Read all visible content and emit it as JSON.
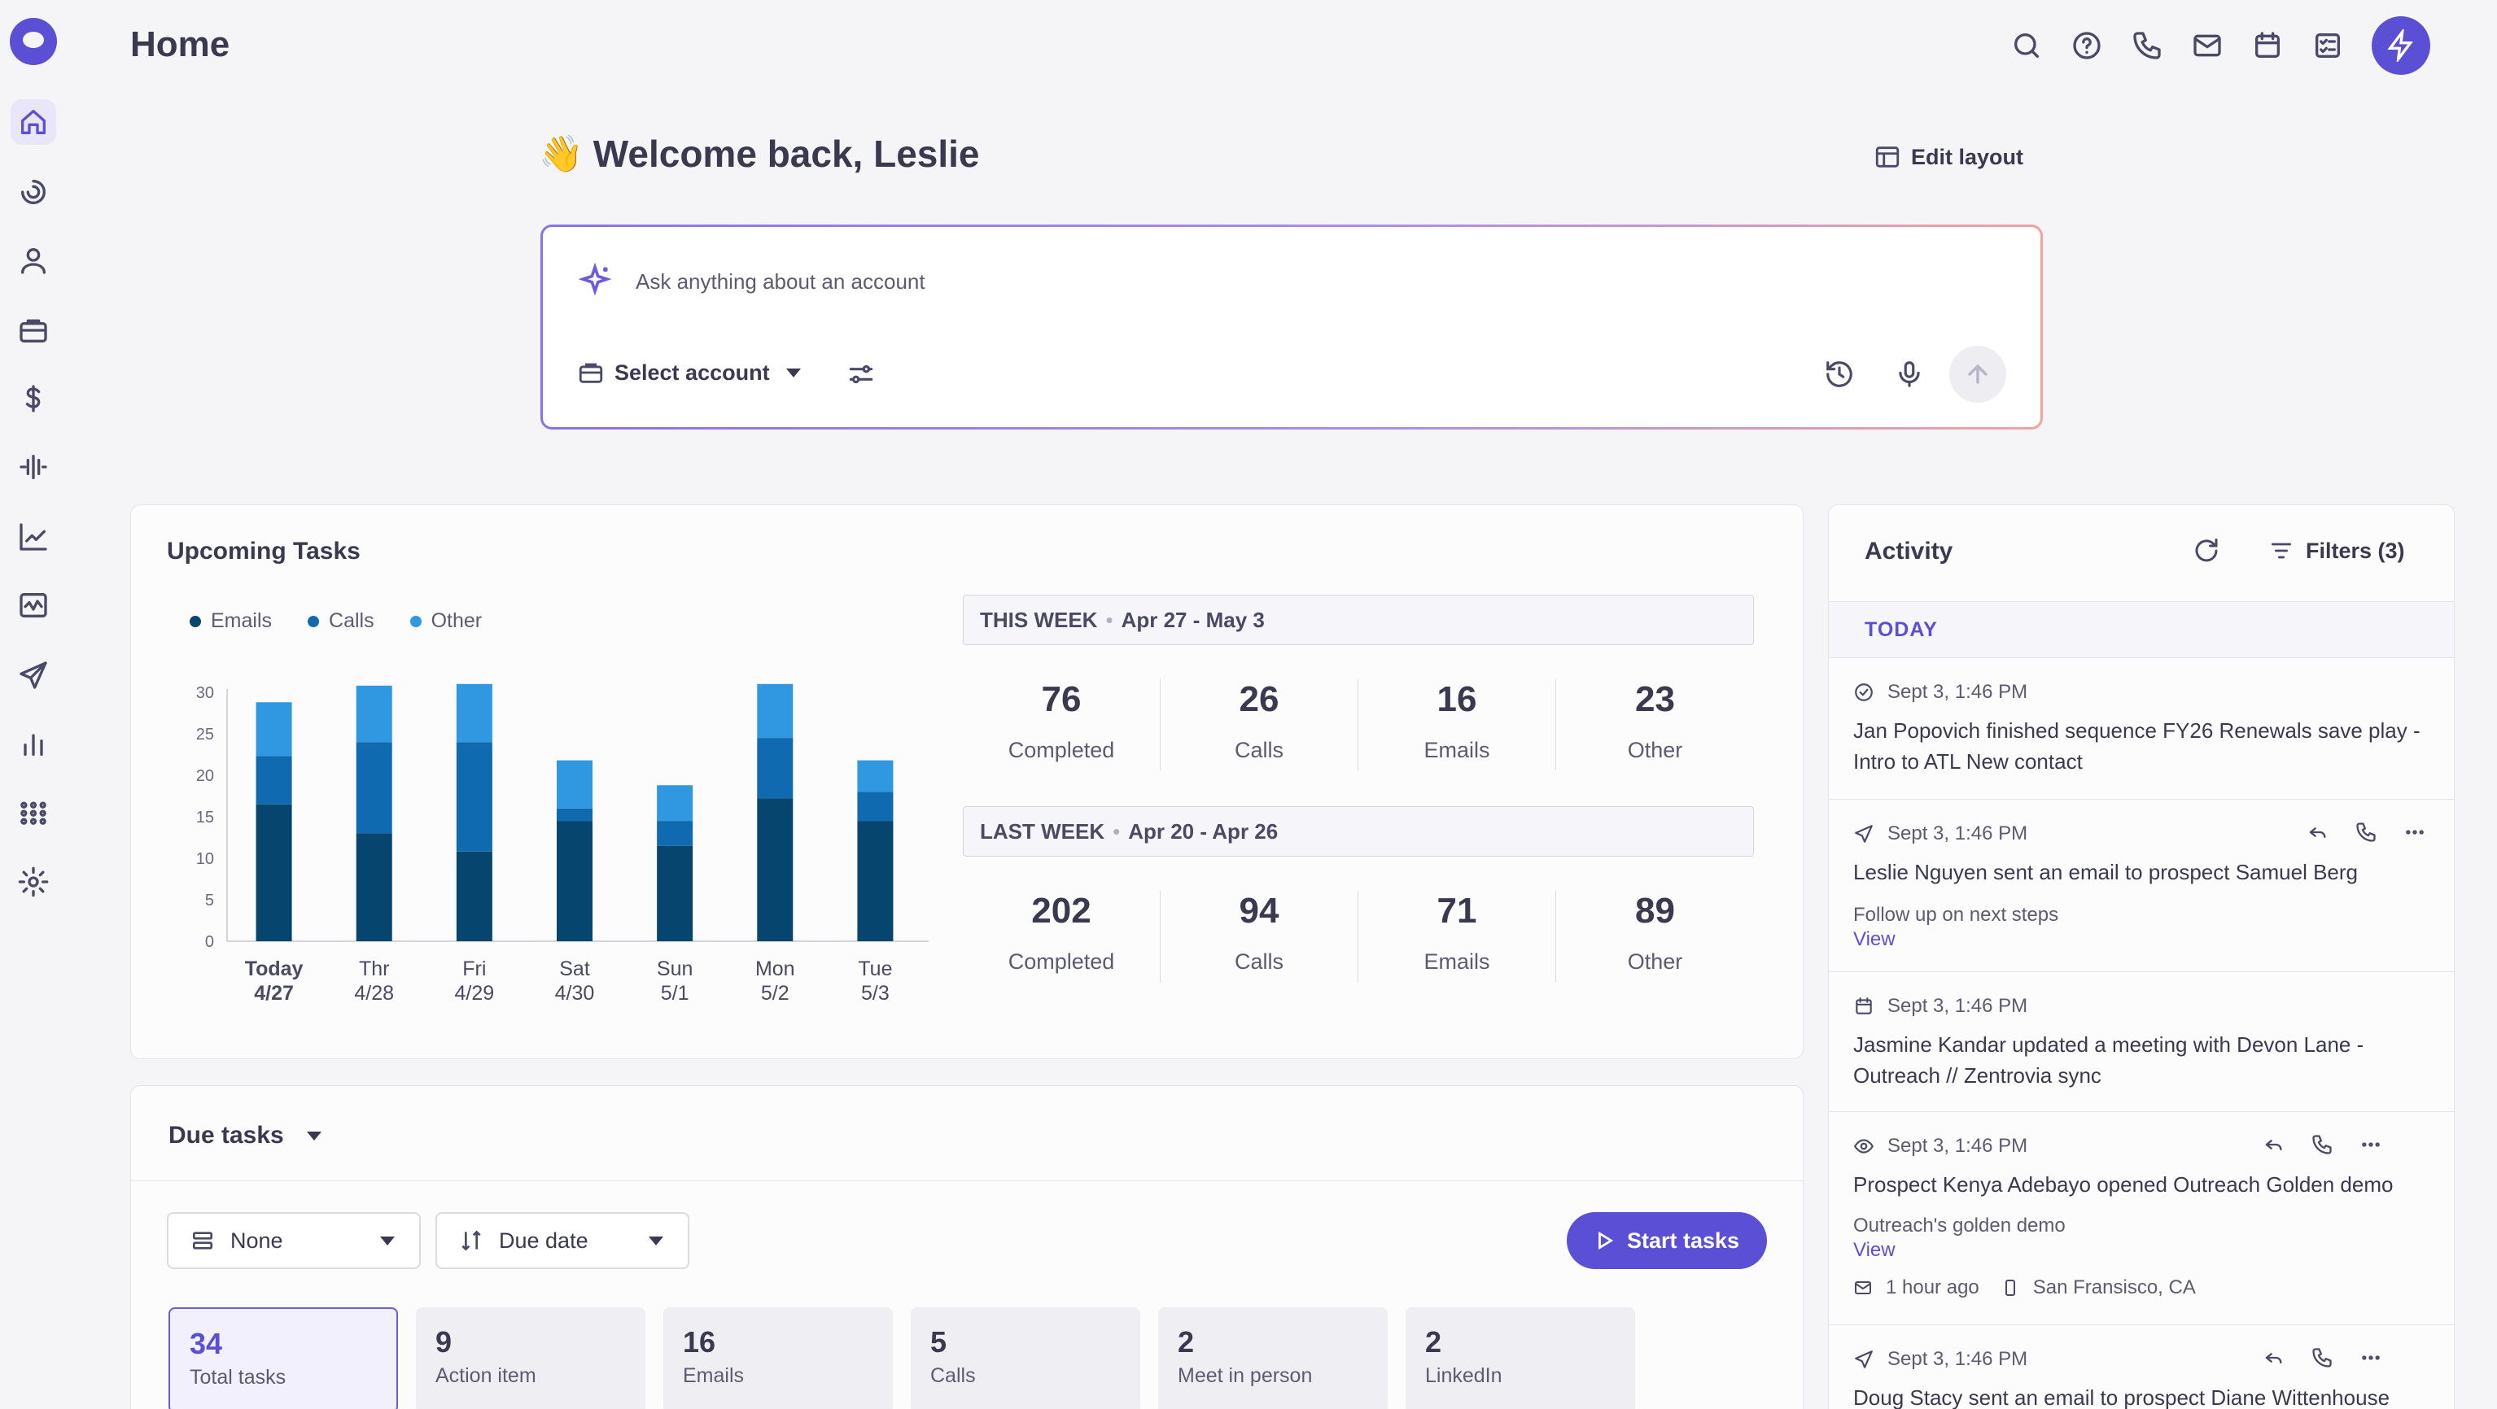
{
  "header": {
    "title": "Home",
    "icons": [
      "search-icon",
      "help-icon",
      "phone-icon",
      "mail-icon",
      "calendar-icon",
      "tasks-icon",
      "bolt-icon"
    ]
  },
  "sidebar": {
    "items": [
      "home-icon",
      "refresh-arc-icon",
      "person-icon",
      "briefcase-icon",
      "dollar-icon",
      "waveform-icon",
      "trend-chart-icon",
      "activity-chart-icon",
      "send-icon",
      "bar-chart-icon",
      "apps-grid-icon",
      "gear-icon"
    ],
    "active": "home-icon"
  },
  "welcome": {
    "emoji": "👋",
    "text": "Welcome back, Leslie",
    "edit_layout": "Edit layout"
  },
  "ask": {
    "placeholder": "Ask anything about an account",
    "select_account": "Select account"
  },
  "upcoming_tasks": {
    "title": "Upcoming Tasks",
    "legend": [
      {
        "name": "Emails",
        "color": "#05456e"
      },
      {
        "name": "Calls",
        "color": "#0f6ab0"
      },
      {
        "name": "Other",
        "color": "#2f98e0"
      }
    ],
    "this_week": {
      "label": "THIS WEEK",
      "range": "Apr 27 - May 3",
      "stats": [
        {
          "value": "76",
          "label": "Completed"
        },
        {
          "value": "26",
          "label": "Calls"
        },
        {
          "value": "16",
          "label": "Emails"
        },
        {
          "value": "23",
          "label": "Other"
        }
      ]
    },
    "last_week": {
      "label": "LAST WEEK",
      "range": "Apr 20 - Apr 26",
      "stats": [
        {
          "value": "202",
          "label": "Completed"
        },
        {
          "value": "94",
          "label": "Calls"
        },
        {
          "value": "71",
          "label": "Emails"
        },
        {
          "value": "89",
          "label": "Other"
        }
      ]
    }
  },
  "chart_data": {
    "type": "bar",
    "stacked": true,
    "categories": [
      [
        "Today",
        "4/27"
      ],
      [
        "Thr",
        "4/28"
      ],
      [
        "Fri",
        "4/29"
      ],
      [
        "Sat",
        "4/30"
      ],
      [
        "Sun",
        "5/1"
      ],
      [
        "Mon",
        "5/2"
      ],
      [
        "Tue",
        "5/3"
      ]
    ],
    "series": [
      {
        "name": "Emails",
        "color": "#05456e",
        "values": [
          16.5,
          13,
          10.8,
          14.5,
          11.5,
          17.2,
          14.5
        ]
      },
      {
        "name": "Calls",
        "color": "#0f6ab0",
        "values": [
          5.8,
          11,
          13.2,
          1.5,
          3,
          7.3,
          3.5
        ]
      },
      {
        "name": "Other",
        "color": "#2f98e0",
        "values": [
          6.5,
          6.8,
          7,
          5.8,
          4.3,
          6.5,
          3.8
        ]
      }
    ],
    "yticks": [
      0,
      5,
      10,
      15,
      20,
      25,
      30
    ],
    "ylim": [
      0,
      30
    ]
  },
  "due_tasks": {
    "title": "Due tasks",
    "group_select": "None",
    "sort_select": "Due date",
    "start_button": "Start tasks",
    "counts": [
      {
        "value": "34",
        "label": "Total tasks"
      },
      {
        "value": "9",
        "label": "Action item"
      },
      {
        "value": "16",
        "label": "Emails"
      },
      {
        "value": "5",
        "label": "Calls"
      },
      {
        "value": "2",
        "label": "Meet in person"
      },
      {
        "value": "2",
        "label": "LinkedIn"
      }
    ]
  },
  "activity": {
    "title": "Activity",
    "filters": "Filters (3)",
    "section": "TODAY",
    "items": [
      {
        "icon": "check-circle-icon",
        "time": "Sept 3, 1:46 PM",
        "text": "Jan Popovich finished sequence FY26 Renewals save play - Intro to ATL New contact"
      },
      {
        "icon": "send-icon",
        "time": "Sept 3, 1:46 PM",
        "text": "Leslie Nguyen sent an email to prospect Samuel Berg",
        "sub": "Follow up on next steps",
        "link": "View"
      },
      {
        "icon": "calendar-icon",
        "time": "Sept 3, 1:46 PM",
        "text": "Jasmine Kandar updated a meeting with Devon Lane - Outreach // Zentrovia sync"
      },
      {
        "icon": "eye-icon",
        "time": "Sept 3, 1:46 PM",
        "text": "Prospect Kenya Adebayo opened Outreach Golden demo",
        "sub": "Outreach's golden demo",
        "link": "View",
        "meta_time": "1 hour ago",
        "meta_location": "San Fransisco, CA"
      },
      {
        "icon": "send-icon",
        "time": "Sept 3, 1:46 PM",
        "text": "Doug Stacy sent an email to prospect Diane Wittenhouse"
      }
    ]
  }
}
